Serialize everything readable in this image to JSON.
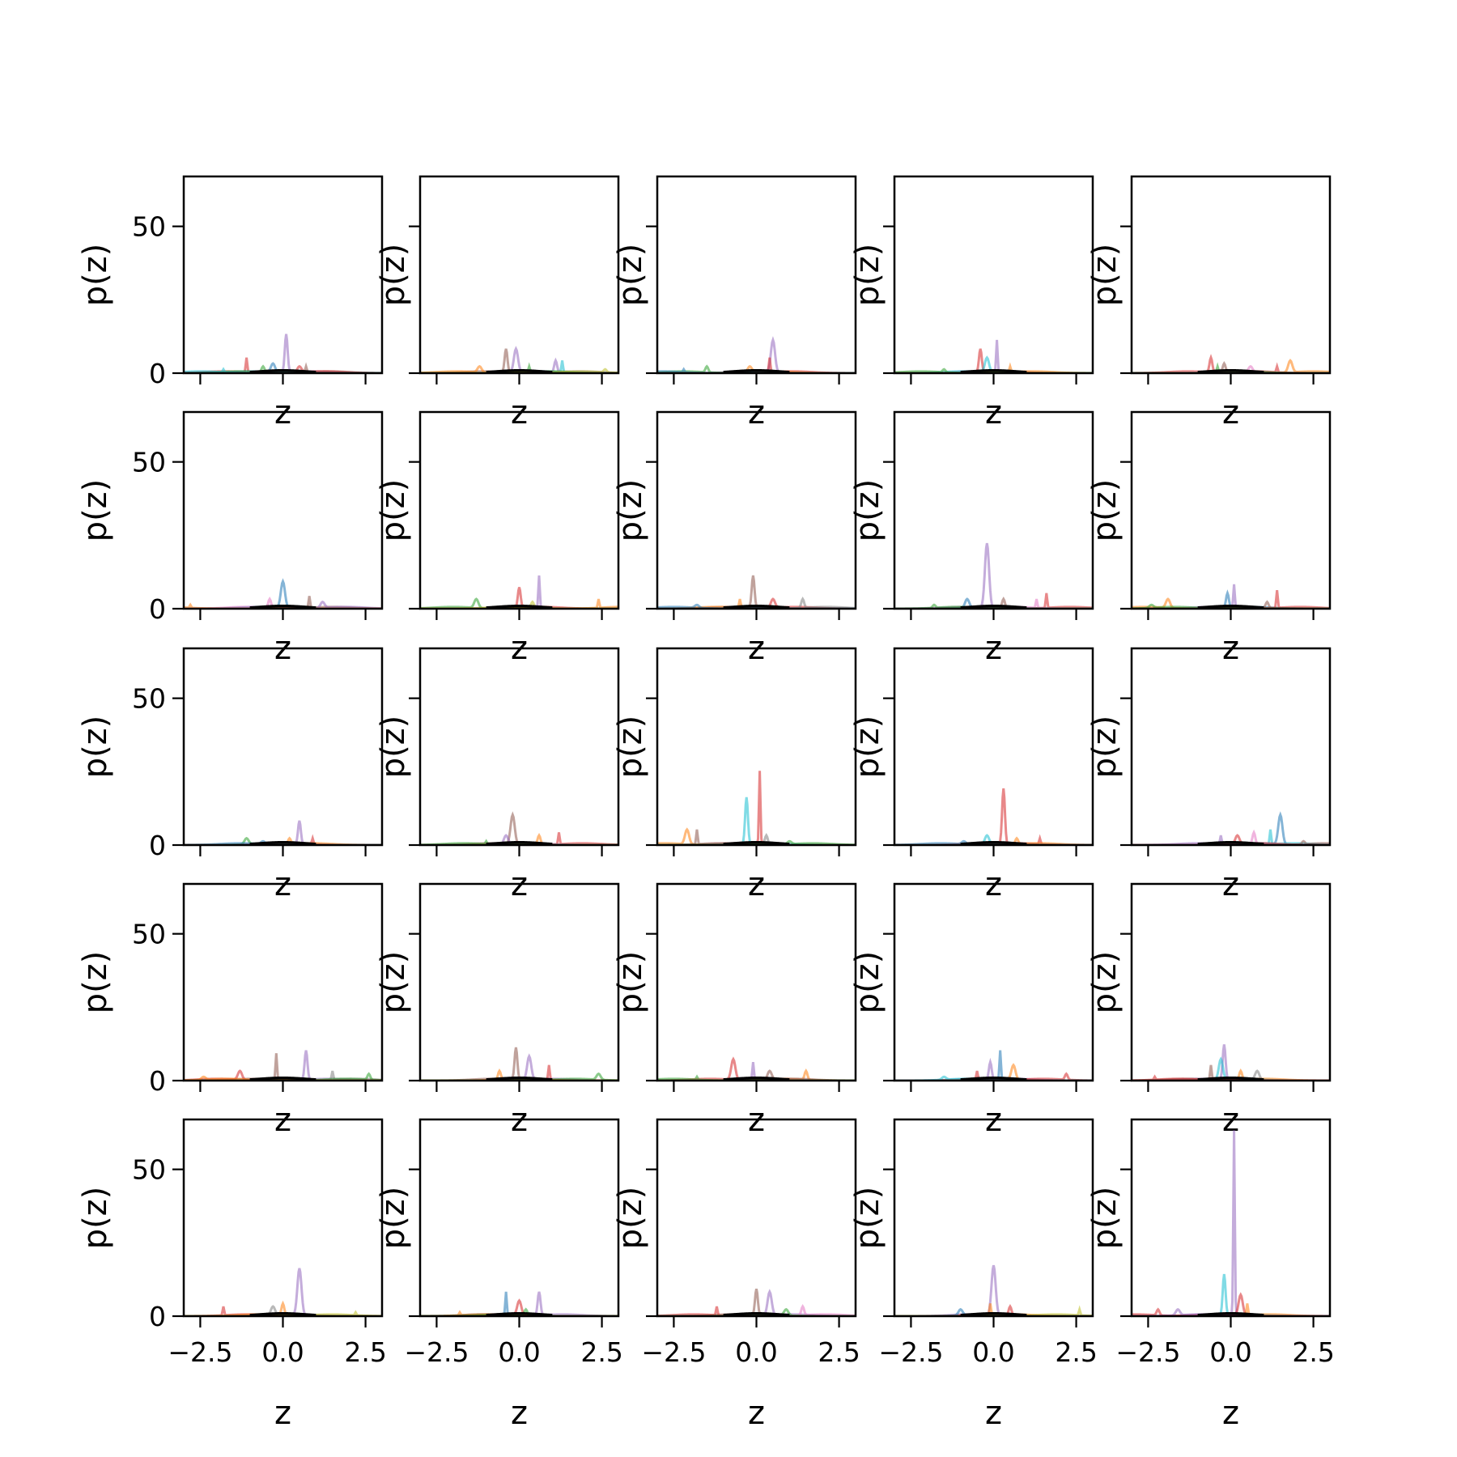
{
  "chart_data": {
    "type": "line",
    "layout": {
      "rows": 5,
      "cols": 5,
      "sharex": true,
      "sharey": true
    },
    "xlabel": "z",
    "ylabel": "p(z)",
    "xlim": [
      -3.0,
      3.0
    ],
    "ylim": [
      0,
      67
    ],
    "xticks": [
      -2.5,
      0.0,
      2.5
    ],
    "xtick_labels": [
      "−2.5",
      "0.0",
      "2.5"
    ],
    "yticks": [
      0,
      50
    ],
    "ytick_labels": [
      "0",
      "50"
    ],
    "grid": false,
    "legend": "none",
    "series_colors": [
      "#1f77b4",
      "#ff7f0e",
      "#2ca02c",
      "#d62728",
      "#9467bd",
      "#8c564b",
      "#e377c2",
      "#7f7f7f",
      "#bcbd22",
      "#17becf"
    ],
    "baseline_color": "#000000",
    "panels": [
      {
        "peaks": [
          [
            -1.1,
            5,
            3
          ],
          [
            0.1,
            13,
            4
          ],
          [
            -0.3,
            3,
            0
          ],
          [
            0.7,
            2,
            5
          ],
          [
            -0.6,
            2,
            2
          ],
          [
            0.5,
            2,
            3
          ],
          [
            -1.8,
            1,
            9
          ]
        ]
      },
      {
        "peaks": [
          [
            -0.4,
            8,
            5
          ],
          [
            -0.1,
            8,
            4
          ],
          [
            1.3,
            4,
            9
          ],
          [
            1.1,
            4,
            4
          ],
          [
            -1.2,
            2,
            1
          ],
          [
            0.3,
            2,
            2
          ],
          [
            2.6,
            1,
            8
          ]
        ]
      },
      {
        "peaks": [
          [
            0.5,
            11,
            4
          ],
          [
            0.4,
            5,
            3
          ],
          [
            -1.5,
            2,
            2
          ],
          [
            -0.2,
            2,
            1
          ],
          [
            -2.2,
            1,
            0
          ]
        ]
      },
      {
        "peaks": [
          [
            0.1,
            11,
            4
          ],
          [
            -0.4,
            8,
            3
          ],
          [
            -0.2,
            5,
            9
          ],
          [
            0.5,
            2,
            1
          ],
          [
            -1.5,
            1,
            2
          ]
        ]
      },
      {
        "peaks": [
          [
            -0.6,
            5,
            3
          ],
          [
            1.8,
            4,
            1
          ],
          [
            1.4,
            2,
            3
          ],
          [
            -0.2,
            3,
            5
          ],
          [
            0.6,
            2,
            6
          ],
          [
            -0.4,
            2,
            2
          ]
        ]
      },
      {
        "peaks": [
          [
            0.0,
            9,
            0
          ],
          [
            0.8,
            4,
            5
          ],
          [
            -0.4,
            3,
            6
          ],
          [
            1.2,
            2,
            4
          ],
          [
            -2.8,
            1,
            1
          ]
        ]
      },
      {
        "peaks": [
          [
            0.6,
            11,
            4
          ],
          [
            0.0,
            7,
            3
          ],
          [
            -1.3,
            3,
            2
          ],
          [
            2.4,
            3,
            1
          ],
          [
            0.4,
            2,
            8
          ]
        ]
      },
      {
        "peaks": [
          [
            -0.1,
            11,
            5
          ],
          [
            0.5,
            3,
            3
          ],
          [
            -0.5,
            3,
            1
          ],
          [
            1.4,
            3,
            7
          ],
          [
            -1.8,
            1,
            0
          ]
        ]
      },
      {
        "peaks": [
          [
            -0.2,
            22,
            4
          ],
          [
            1.6,
            5,
            3
          ],
          [
            0.3,
            3,
            5
          ],
          [
            -0.8,
            3,
            0
          ],
          [
            1.3,
            3,
            6
          ],
          [
            -1.8,
            1,
            2
          ]
        ]
      },
      {
        "peaks": [
          [
            0.1,
            8,
            4
          ],
          [
            -0.1,
            5,
            0
          ],
          [
            -1.9,
            3,
            1
          ],
          [
            1.4,
            6,
            3
          ],
          [
            1.1,
            2,
            5
          ],
          [
            -2.4,
            1,
            2
          ]
        ]
      },
      {
        "peaks": [
          [
            0.5,
            8,
            4
          ],
          [
            -1.1,
            2,
            2
          ],
          [
            0.9,
            2,
            3
          ],
          [
            0.2,
            2,
            1
          ],
          [
            -0.6,
            1,
            0
          ]
        ]
      },
      {
        "peaks": [
          [
            -0.2,
            10,
            5
          ],
          [
            1.2,
            4,
            3
          ],
          [
            0.6,
            3,
            1
          ],
          [
            -0.4,
            3,
            4
          ],
          [
            -1.0,
            1,
            2
          ]
        ]
      },
      {
        "peaks": [
          [
            0.1,
            25,
            3
          ],
          [
            -0.3,
            16,
            9
          ],
          [
            -2.1,
            5,
            1
          ],
          [
            -1.8,
            5,
            5
          ],
          [
            0.3,
            3,
            7
          ],
          [
            1.0,
            1,
            2
          ]
        ]
      },
      {
        "peaks": [
          [
            0.3,
            19,
            3
          ],
          [
            -0.2,
            3,
            9
          ],
          [
            1.4,
            2,
            3
          ],
          [
            0.7,
            2,
            1
          ],
          [
            -0.9,
            1,
            0
          ]
        ]
      },
      {
        "peaks": [
          [
            1.5,
            10,
            0
          ],
          [
            1.2,
            5,
            9
          ],
          [
            0.7,
            4,
            6
          ],
          [
            0.2,
            3,
            3
          ],
          [
            -0.3,
            3,
            4
          ],
          [
            2.2,
            1,
            5
          ]
        ]
      },
      {
        "peaks": [
          [
            -0.2,
            9,
            5
          ],
          [
            0.7,
            10,
            4
          ],
          [
            -1.3,
            3,
            3
          ],
          [
            1.5,
            3,
            7
          ],
          [
            2.6,
            2,
            2
          ],
          [
            -2.4,
            1,
            1
          ]
        ]
      },
      {
        "peaks": [
          [
            -0.1,
            11,
            5
          ],
          [
            0.3,
            8,
            4
          ],
          [
            0.9,
            5,
            3
          ],
          [
            -0.6,
            3,
            1
          ],
          [
            2.4,
            2,
            2
          ]
        ]
      },
      {
        "peaks": [
          [
            -0.7,
            7,
            3
          ],
          [
            -0.1,
            6,
            4
          ],
          [
            1.5,
            3,
            1
          ],
          [
            0.4,
            3,
            5
          ],
          [
            -1.8,
            1,
            2
          ]
        ]
      },
      {
        "peaks": [
          [
            0.2,
            10,
            0
          ],
          [
            -0.1,
            6,
            4
          ],
          [
            0.6,
            5,
            1
          ],
          [
            -0.5,
            3,
            3
          ],
          [
            2.2,
            2,
            3
          ],
          [
            -1.5,
            1,
            9
          ]
        ]
      },
      {
        "peaks": [
          [
            -0.2,
            12,
            4
          ],
          [
            -0.3,
            7,
            9
          ],
          [
            -0.6,
            5,
            5
          ],
          [
            0.3,
            3,
            1
          ],
          [
            0.8,
            3,
            7
          ],
          [
            -2.3,
            1,
            3
          ]
        ]
      },
      {
        "peaks": [
          [
            0.5,
            16,
            4
          ],
          [
            -1.8,
            3,
            3
          ],
          [
            0.0,
            4,
            1
          ],
          [
            -0.3,
            3,
            7
          ],
          [
            2.2,
            1,
            8
          ]
        ]
      },
      {
        "peaks": [
          [
            -0.4,
            8,
            0
          ],
          [
            0.6,
            8,
            4
          ],
          [
            0.0,
            5,
            3
          ],
          [
            -1.8,
            1,
            1
          ],
          [
            0.2,
            2,
            2
          ]
        ]
      },
      {
        "peaks": [
          [
            0.0,
            9,
            5
          ],
          [
            0.4,
            8,
            4
          ],
          [
            -1.2,
            3,
            3
          ],
          [
            1.4,
            3,
            6
          ],
          [
            0.9,
            2,
            2
          ]
        ]
      },
      {
        "peaks": [
          [
            0.0,
            17,
            4
          ],
          [
            -0.1,
            4,
            1
          ],
          [
            0.5,
            3,
            3
          ],
          [
            -1.0,
            2,
            0
          ],
          [
            2.6,
            2,
            8
          ]
        ]
      },
      {
        "peaks": [
          [
            0.1,
            63,
            4
          ],
          [
            -0.2,
            14,
            9
          ],
          [
            0.3,
            7,
            3
          ],
          [
            0.5,
            4,
            1
          ],
          [
            -2.2,
            2,
            3
          ],
          [
            -1.6,
            2,
            4
          ]
        ]
      }
    ]
  }
}
